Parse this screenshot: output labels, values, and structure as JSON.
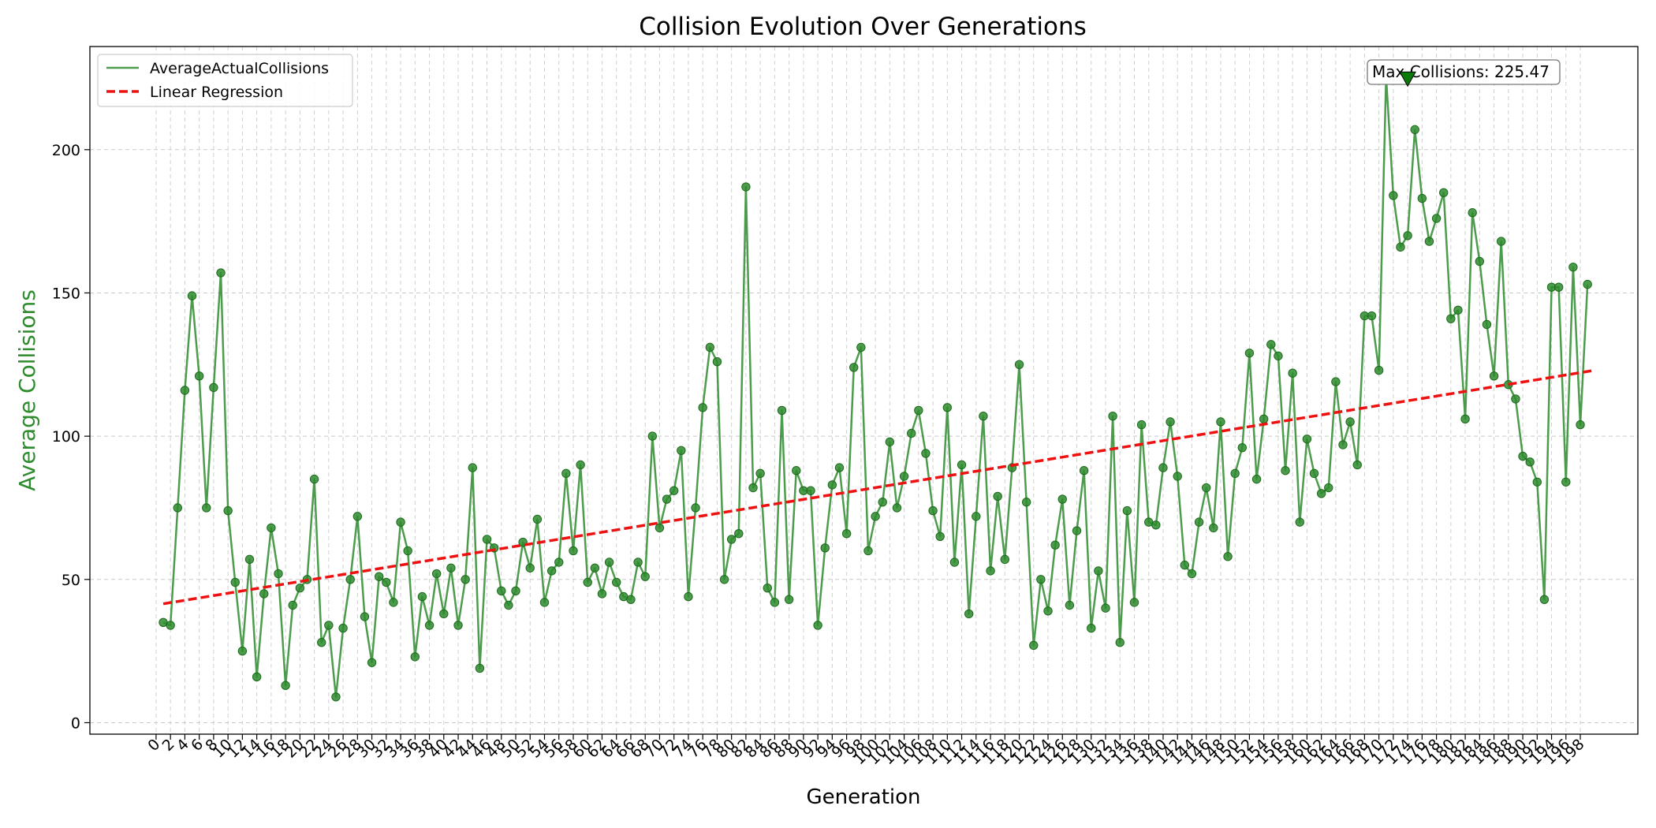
{
  "chart_data": {
    "type": "line",
    "title": "Collision Evolution Over Generations",
    "xlabel": "Generation",
    "ylabel": "Average Collisions",
    "xlim": [
      -9.2,
      206.0
    ],
    "ylim": [
      -4.0,
      236.0
    ],
    "x_ticks": [
      0,
      2,
      4,
      6,
      8,
      10,
      12,
      14,
      16,
      18,
      20,
      22,
      24,
      26,
      28,
      30,
      32,
      34,
      36,
      38,
      40,
      42,
      44,
      46,
      48,
      50,
      52,
      54,
      56,
      58,
      60,
      62,
      64,
      66,
      68,
      70,
      72,
      74,
      76,
      78,
      80,
      82,
      84,
      86,
      88,
      90,
      92,
      94,
      96,
      98,
      100,
      102,
      104,
      106,
      108,
      110,
      112,
      114,
      116,
      118,
      120,
      122,
      124,
      126,
      128,
      130,
      132,
      134,
      136,
      138,
      140,
      142,
      144,
      146,
      148,
      150,
      152,
      154,
      156,
      158,
      160,
      162,
      164,
      166,
      168,
      170,
      172,
      174,
      176,
      178,
      180,
      182,
      184,
      186,
      188,
      190,
      192,
      194,
      196,
      198
    ],
    "y_ticks": [
      0,
      50,
      100,
      150,
      200
    ],
    "grid": true,
    "legend_position": "top-left",
    "series": [
      {
        "name": "AverageActualCollisions",
        "color": "#2e8b2e",
        "x_start": 1,
        "values": [
          35,
          34,
          75,
          116,
          149,
          121,
          75,
          117,
          157,
          74,
          49,
          25,
          57,
          16,
          45,
          68,
          52,
          13,
          41,
          47,
          50,
          85,
          28,
          34,
          9,
          33,
          50,
          72,
          37,
          21,
          51,
          49,
          42,
          70,
          60,
          23,
          44,
          34,
          52,
          38,
          54,
          34,
          50,
          89,
          19,
          64,
          61,
          46,
          41,
          46,
          63,
          54,
          71,
          42,
          53,
          56,
          87,
          60,
          90,
          49,
          54,
          45,
          56,
          49,
          44,
          43,
          56,
          51,
          100,
          68,
          78,
          81,
          95,
          44,
          75,
          110,
          131,
          126,
          50,
          64,
          66,
          187,
          82,
          87,
          47,
          42,
          109,
          43,
          88,
          81,
          81,
          34,
          61,
          83,
          89,
          66,
          124,
          131,
          60,
          72,
          77,
          98,
          75,
          86,
          101,
          109,
          94,
          74,
          65,
          110,
          56,
          90,
          38,
          72,
          107,
          53,
          79,
          57,
          89,
          125,
          77,
          27,
          50,
          39,
          62,
          78,
          41,
          67,
          88,
          33,
          53,
          40,
          107,
          28,
          74,
          42,
          104,
          70,
          69,
          89,
          105,
          86,
          55,
          52,
          70,
          82,
          68,
          105,
          58,
          87,
          96,
          129,
          85,
          106,
          132,
          128,
          88,
          122,
          70,
          99,
          87,
          80,
          82,
          119,
          97,
          105,
          90,
          142,
          142,
          123,
          225.47,
          184,
          166,
          170,
          207,
          183,
          168,
          176,
          185,
          141,
          144,
          106,
          178,
          161,
          139,
          121,
          168,
          118,
          113,
          93,
          91,
          84,
          43,
          152,
          152,
          84,
          159,
          104,
          153
        ]
      },
      {
        "name": "Linear Regression",
        "color": "#ee1111",
        "style": "dashed",
        "x": [
          1,
          200
        ],
        "y": [
          41.5,
          123.0
        ]
      }
    ],
    "annotation": {
      "text": "Max Collisions: 225.47",
      "x": 174,
      "y": 225.47
    }
  }
}
